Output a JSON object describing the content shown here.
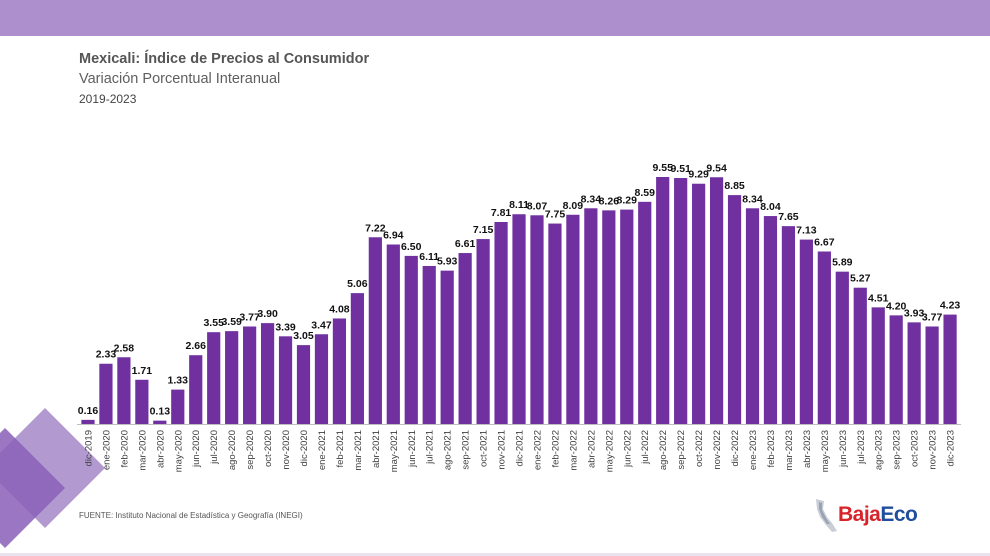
{
  "colors": {
    "band": "#ac8fcc",
    "bar": "#7030a0",
    "deco_light": "#b299d0",
    "deco_dark": "#8a5fb8"
  },
  "header": {
    "title": "Mexicali: Índice de Precios al Consumidor",
    "subtitle": "Variación Porcentual Interanual",
    "period": "2019-2023"
  },
  "footer": {
    "source": "FUENTE: Instituto Nacional de Estadística y Geografía (INEGI)"
  },
  "logo": {
    "part1": "Baja",
    "part2": "Eco",
    "icon": "baja-california-map-icon"
  },
  "chart_data": {
    "type": "bar",
    "title": "Mexicali: Índice de Precios al Consumidor",
    "subtitle": "Variación Porcentual Interanual",
    "xlabel": "",
    "ylabel": "",
    "ylim": [
      0,
      10.5
    ],
    "grid": false,
    "legend": "none",
    "categories": [
      "dic-2019",
      "ene-2020",
      "feb-2020",
      "mar-2020",
      "abr-2020",
      "may-2020",
      "jun-2020",
      "jul-2020",
      "ago-2020",
      "sep-2020",
      "oct-2020",
      "nov-2020",
      "dic-2020",
      "ene-2021",
      "feb-2021",
      "mar-2021",
      "abr-2021",
      "may-2021",
      "jun-2021",
      "jul-2021",
      "ago-2021",
      "sep-2021",
      "oct-2021",
      "nov-2021",
      "dic-2021",
      "ene-2022",
      "feb-2022",
      "mar-2022",
      "abr-2022",
      "may-2022",
      "jun-2022",
      "jul-2022",
      "ago-2022",
      "sep-2022",
      "oct-2022",
      "nov-2022",
      "dic-2022",
      "ene-2023",
      "feb-2023",
      "mar-2023",
      "abr-2023",
      "may-2023",
      "jun-2023",
      "jul-2023",
      "ago-2023",
      "sep-2023",
      "oct-2023",
      "nov-2023",
      "dic-2023"
    ],
    "values": [
      0.16,
      2.33,
      2.58,
      1.71,
      0.13,
      1.33,
      2.66,
      3.55,
      3.59,
      3.77,
      3.9,
      3.39,
      3.05,
      3.47,
      4.08,
      5.06,
      7.22,
      6.94,
      6.5,
      6.11,
      5.93,
      6.61,
      7.15,
      7.81,
      8.11,
      8.07,
      7.75,
      8.09,
      8.34,
      8.26,
      8.29,
      8.59,
      9.55,
      9.51,
      9.29,
      9.54,
      8.85,
      8.34,
      8.04,
      7.65,
      7.13,
      6.67,
      5.89,
      5.27,
      4.51,
      4.2,
      3.93,
      3.77,
      4.23
    ],
    "value_labels": [
      "0.16",
      "2.33",
      "2.58",
      "1.71",
      "0.13",
      "1.33",
      "2.66",
      "3.55",
      "3.59",
      "3.77",
      "3.90",
      "3.39",
      "3.05",
      "3.47",
      "4.08",
      "5.06",
      "7.22",
      "6.94",
      "6.50",
      "6.11",
      "5.93",
      "6.61",
      "7.15",
      "7.81",
      "8.11",
      "8.07",
      "7.75",
      "8.09",
      "8.34",
      "8.26",
      "8.29",
      "8.59",
      "9.55",
      "9.51",
      "9.29",
      "9.54",
      "8.85",
      "8.34",
      "8.04",
      "7.65",
      "7.13",
      "6.67",
      "5.89",
      "5.27",
      "4.51",
      "4.20",
      "3.93",
      "3.77",
      "4.23"
    ]
  }
}
